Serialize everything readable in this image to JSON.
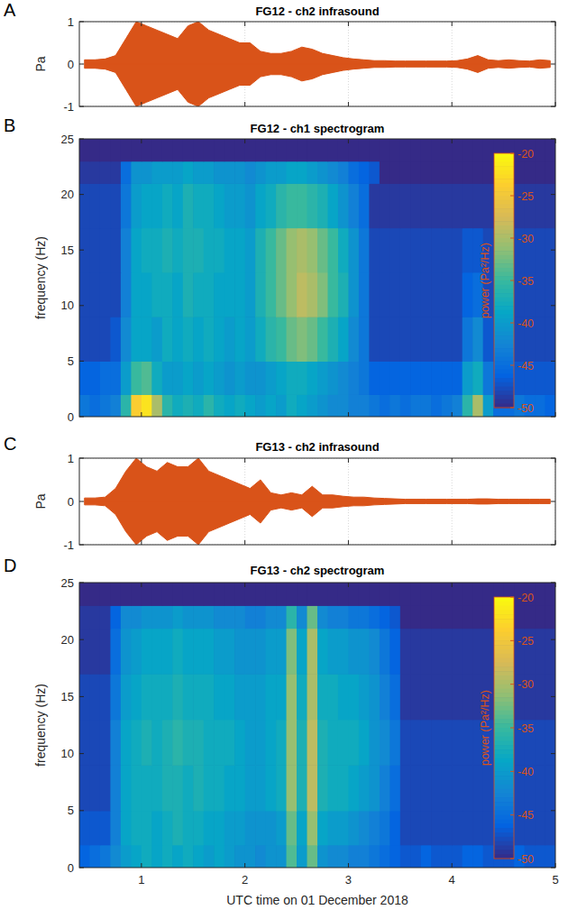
{
  "chart_data": [
    {
      "type": "envelope",
      "panel": "A",
      "title": "FG12 - ch2 infrasound",
      "y_label": "Pa",
      "color": "#d95319",
      "grid": true,
      "tick_labels": "y",
      "xlim": [
        0.4,
        5
      ],
      "xticks": [
        1,
        2,
        3,
        4,
        5
      ],
      "ylim": [
        -1,
        1
      ],
      "yticks": [
        -1,
        0,
        1
      ],
      "x": [
        0.45,
        0.55,
        0.65,
        0.75,
        0.85,
        0.95,
        1.05,
        1.15,
        1.25,
        1.35,
        1.45,
        1.55,
        1.65,
        1.75,
        1.85,
        1.95,
        2.05,
        2.15,
        2.25,
        2.35,
        2.45,
        2.55,
        2.65,
        2.75,
        2.85,
        2.95,
        3.05,
        3.15,
        3.25,
        3.35,
        3.45,
        3.55,
        3.65,
        3.75,
        3.85,
        3.95,
        4.05,
        4.15,
        4.25,
        4.35,
        4.45,
        4.55,
        4.65,
        4.75,
        4.85,
        4.95
      ],
      "values": [
        0.1,
        0.1,
        0.12,
        0.2,
        0.6,
        1.0,
        0.9,
        0.8,
        0.7,
        0.6,
        0.9,
        1.0,
        0.8,
        0.7,
        0.6,
        0.5,
        0.5,
        0.3,
        0.25,
        0.25,
        0.3,
        0.4,
        0.35,
        0.25,
        0.2,
        0.15,
        0.12,
        0.1,
        0.08,
        0.08,
        0.07,
        0.07,
        0.07,
        0.07,
        0.07,
        0.07,
        0.08,
        0.12,
        0.2,
        0.1,
        0.08,
        0.1,
        0.08,
        0.07,
        0.1,
        0.08
      ]
    },
    {
      "type": "heatmap",
      "panel": "B",
      "title": "FG12 - ch1 spectrogram",
      "y_label": "frequency (Hz)",
      "grid": false,
      "tick_labels": "y",
      "xlim": [
        0.4,
        5
      ],
      "xticks": [
        1,
        2,
        3,
        4,
        5
      ],
      "ylim": [
        0,
        25
      ],
      "yticks": [
        0,
        5,
        10,
        15,
        20,
        25
      ],
      "x_edges": [
        0.4,
        0.5,
        0.6,
        0.7,
        0.8,
        0.9,
        1.0,
        1.1,
        1.2,
        1.3,
        1.4,
        1.5,
        1.6,
        1.7,
        1.8,
        1.9,
        2.0,
        2.1,
        2.2,
        2.3,
        2.4,
        2.5,
        2.6,
        2.7,
        2.8,
        2.9,
        3.0,
        3.1,
        3.2,
        3.3,
        3.4,
        3.5,
        3.6,
        3.7,
        3.8,
        3.9,
        4.0,
        4.1,
        4.2,
        4.3,
        4.4,
        4.5,
        4.6,
        4.7,
        4.8,
        4.9,
        5.0
      ],
      "y_edges": [
        0,
        2,
        5,
        9,
        13,
        17,
        21,
        23,
        25
      ],
      "cells": [
        [
          -44,
          -45,
          -44,
          -43,
          -36,
          -24,
          -22,
          -30,
          -36,
          -38,
          -37,
          -38,
          -36,
          -38,
          -39,
          -38,
          -39,
          -40,
          -39,
          -40,
          -38,
          -39,
          -40,
          -41,
          -42,
          -42,
          -43,
          -43,
          -44,
          -45,
          -44,
          -45,
          -44,
          -44,
          -45,
          -44,
          -43,
          -36,
          -30,
          -40,
          -45,
          -45,
          -44,
          -45,
          -45,
          -46
        ],
        [
          -46,
          -46,
          -45,
          -45,
          -40,
          -35,
          -34,
          -38,
          -40,
          -40,
          -39,
          -40,
          -39,
          -40,
          -41,
          -40,
          -41,
          -41,
          -40,
          -39,
          -38,
          -38,
          -39,
          -40,
          -41,
          -42,
          -43,
          -44,
          -46,
          -46,
          -46,
          -46,
          -46,
          -46,
          -46,
          -46,
          -46,
          -40,
          -38,
          -44,
          -47,
          -47,
          -47,
          -47,
          -47,
          -47
        ],
        [
          -48,
          -48,
          -48,
          -47,
          -42,
          -39,
          -39,
          -40,
          -38,
          -39,
          -38,
          -39,
          -38,
          -39,
          -40,
          -39,
          -40,
          -38,
          -36,
          -35,
          -33,
          -32,
          -33,
          -35,
          -37,
          -39,
          -42,
          -44,
          -48,
          -48,
          -48,
          -48,
          -48,
          -48,
          -48,
          -48,
          -48,
          -44,
          -42,
          -47,
          -48,
          -48,
          -48,
          -48,
          -48,
          -48
        ],
        [
          -48,
          -48,
          -48,
          -48,
          -43,
          -39,
          -39,
          -38,
          -38,
          -39,
          -37,
          -38,
          -38,
          -39,
          -39,
          -39,
          -40,
          -37,
          -35,
          -33,
          -31,
          -29,
          -30,
          -32,
          -35,
          -37,
          -41,
          -44,
          -48,
          -48,
          -48,
          -48,
          -48,
          -48,
          -48,
          -48,
          -48,
          -46,
          -45,
          -48,
          -48,
          -48,
          -48,
          -48,
          -48,
          -48
        ],
        [
          -48,
          -48,
          -48,
          -48,
          -43,
          -39,
          -38,
          -38,
          -37,
          -38,
          -37,
          -37,
          -38,
          -38,
          -39,
          -39,
          -40,
          -37,
          -35,
          -33,
          -31,
          -30,
          -31,
          -33,
          -35,
          -38,
          -41,
          -44,
          -48,
          -48,
          -48,
          -48,
          -48,
          -48,
          -48,
          -48,
          -48,
          -47,
          -47,
          -48,
          -48,
          -48,
          -48,
          -48,
          -48,
          -48
        ],
        [
          -48,
          -48,
          -48,
          -48,
          -44,
          -40,
          -39,
          -39,
          -38,
          -39,
          -37,
          -38,
          -38,
          -39,
          -40,
          -40,
          -41,
          -39,
          -38,
          -36,
          -35,
          -35,
          -36,
          -37,
          -39,
          -41,
          -43,
          -45,
          -49,
          -49,
          -49,
          -49,
          -49,
          -49,
          -49,
          -49,
          -49,
          -49,
          -49,
          -49,
          -49,
          -49,
          -49,
          -49,
          -49,
          -49
        ],
        [
          -49,
          -49,
          -49,
          -49,
          -45,
          -41,
          -41,
          -40,
          -40,
          -40,
          -39,
          -40,
          -40,
          -41,
          -41,
          -41,
          -42,
          -41,
          -40,
          -40,
          -39,
          -39,
          -40,
          -41,
          -42,
          -43,
          -45,
          -46,
          -47,
          -50,
          -50,
          -50,
          -50,
          -50,
          -50,
          -50,
          -50,
          -50,
          -50,
          -50,
          -50,
          -50,
          -50,
          -50,
          -50,
          -50
        ],
        [
          -50,
          -50,
          -50,
          -50,
          -50,
          -50,
          -50,
          -50,
          -50,
          -50,
          -50,
          -50,
          -50,
          -50,
          -50,
          -50,
          -50,
          -50,
          -50,
          -50,
          -50,
          -50,
          -50,
          -50,
          -50,
          -50,
          -50,
          -50,
          -50,
          -50,
          -50,
          -50,
          -50,
          -50,
          -50,
          -50,
          -50,
          -50,
          -50,
          -50,
          -50,
          -50,
          -50,
          -50,
          -50,
          -50
        ]
      ],
      "colorbar": {
        "label": "power (Pa²/Hz)",
        "range": [
          -50,
          -20
        ],
        "ticks": [
          -20,
          -25,
          -30,
          -35,
          -40,
          -45,
          -50
        ]
      }
    },
    {
      "type": "envelope",
      "panel": "C",
      "title": "FG13 - ch2 infrasound",
      "y_label": "Pa",
      "color": "#d95319",
      "grid": true,
      "tick_labels": "y",
      "xlim": [
        0.4,
        5
      ],
      "xticks": [
        1,
        2,
        3,
        4,
        5
      ],
      "ylim": [
        -1,
        1
      ],
      "yticks": [
        -1,
        0,
        1
      ],
      "x": [
        0.45,
        0.55,
        0.65,
        0.75,
        0.85,
        0.95,
        1.05,
        1.15,
        1.25,
        1.35,
        1.45,
        1.55,
        1.65,
        1.75,
        1.85,
        1.95,
        2.05,
        2.15,
        2.25,
        2.35,
        2.45,
        2.55,
        2.65,
        2.75,
        2.85,
        2.95,
        3.05,
        3.15,
        3.25,
        3.35,
        3.45,
        3.55,
        3.65,
        3.75,
        3.85,
        3.95,
        4.05,
        4.15,
        4.25,
        4.35,
        4.45,
        4.55,
        4.65,
        4.75,
        4.85,
        4.95
      ],
      "values": [
        0.08,
        0.08,
        0.1,
        0.3,
        0.7,
        1.0,
        0.8,
        0.7,
        0.9,
        0.8,
        0.8,
        1.0,
        0.7,
        0.6,
        0.5,
        0.4,
        0.3,
        0.5,
        0.2,
        0.15,
        0.2,
        0.15,
        0.35,
        0.15,
        0.15,
        0.12,
        0.1,
        0.1,
        0.08,
        0.07,
        0.06,
        0.05,
        0.05,
        0.05,
        0.05,
        0.05,
        0.05,
        0.05,
        0.06,
        0.06,
        0.05,
        0.05,
        0.05,
        0.05,
        0.05,
        0.05
      ]
    },
    {
      "type": "heatmap",
      "panel": "D",
      "title": "FG13 - ch2 spectrogram",
      "y_label": "frequency (Hz)",
      "x_label": "UTC time on 01 December 2018",
      "grid": false,
      "tick_labels": true,
      "xlim": [
        0.4,
        5
      ],
      "xticks": [
        1,
        2,
        3,
        4,
        5
      ],
      "ylim": [
        0,
        25
      ],
      "yticks": [
        0,
        5,
        10,
        15,
        20,
        25
      ],
      "x_edges": [
        0.4,
        0.5,
        0.6,
        0.7,
        0.8,
        0.9,
        1.0,
        1.1,
        1.2,
        1.3,
        1.4,
        1.5,
        1.6,
        1.7,
        1.8,
        1.9,
        2.0,
        2.1,
        2.2,
        2.3,
        2.4,
        2.5,
        2.6,
        2.7,
        2.8,
        2.9,
        3.0,
        3.1,
        3.2,
        3.3,
        3.4,
        3.5,
        3.6,
        3.7,
        3.8,
        3.9,
        4.0,
        4.1,
        4.2,
        4.3,
        4.4,
        4.5,
        4.6,
        4.7,
        4.8,
        4.9,
        5.0
      ],
      "y_edges": [
        0,
        2,
        5,
        9,
        13,
        17,
        21,
        23,
        25
      ],
      "cells": [
        [
          -46,
          -45,
          -44,
          -42,
          -40,
          -39,
          -38,
          -39,
          -38,
          -39,
          -38,
          -39,
          -40,
          -39,
          -40,
          -41,
          -41,
          -42,
          -41,
          -41,
          -34,
          -40,
          -33,
          -41,
          -42,
          -42,
          -43,
          -43,
          -44,
          -45,
          -46,
          -47,
          -47,
          -46,
          -47,
          -47,
          -47,
          -46,
          -46,
          -47,
          -47,
          -47,
          -46,
          -47,
          -47,
          -47
        ],
        [
          -47,
          -47,
          -47,
          -43,
          -39,
          -38,
          -38,
          -39,
          -38,
          -37,
          -38,
          -38,
          -39,
          -39,
          -40,
          -40,
          -41,
          -41,
          -41,
          -40,
          -33,
          -39,
          -31,
          -39,
          -40,
          -40,
          -41,
          -42,
          -43,
          -44,
          -46,
          -48,
          -48,
          -48,
          -48,
          -48,
          -48,
          -48,
          -48,
          -48,
          -48,
          -48,
          -48,
          -48,
          -48,
          -48
        ],
        [
          -48,
          -48,
          -48,
          -43,
          -39,
          -38,
          -38,
          -38,
          -37,
          -37,
          -38,
          -37,
          -38,
          -38,
          -39,
          -39,
          -40,
          -40,
          -39,
          -38,
          -31,
          -37,
          -29,
          -37,
          -38,
          -38,
          -39,
          -40,
          -41,
          -43,
          -45,
          -48,
          -48,
          -48,
          -48,
          -48,
          -48,
          -48,
          -48,
          -48,
          -48,
          -48,
          -48,
          -48,
          -48,
          -48
        ],
        [
          -48,
          -48,
          -48,
          -43,
          -39,
          -38,
          -37,
          -38,
          -37,
          -36,
          -37,
          -37,
          -38,
          -38,
          -38,
          -39,
          -40,
          -40,
          -39,
          -38,
          -31,
          -37,
          -29,
          -37,
          -38,
          -38,
          -38,
          -39,
          -41,
          -42,
          -44,
          -48,
          -48,
          -48,
          -48,
          -48,
          -48,
          -48,
          -48,
          -48,
          -48,
          -48,
          -48,
          -48,
          -48,
          -48
        ],
        [
          -48,
          -48,
          -48,
          -44,
          -40,
          -39,
          -38,
          -38,
          -38,
          -37,
          -38,
          -38,
          -38,
          -39,
          -39,
          -40,
          -40,
          -40,
          -39,
          -39,
          -31,
          -38,
          -30,
          -38,
          -38,
          -39,
          -39,
          -40,
          -41,
          -43,
          -45,
          -49,
          -49,
          -49,
          -49,
          -49,
          -49,
          -49,
          -49,
          -49,
          -49,
          -49,
          -49,
          -49,
          -49,
          -49
        ],
        [
          -49,
          -49,
          -49,
          -45,
          -41,
          -40,
          -39,
          -39,
          -39,
          -38,
          -39,
          -39,
          -39,
          -40,
          -40,
          -41,
          -41,
          -41,
          -40,
          -40,
          -32,
          -39,
          -30,
          -39,
          -40,
          -40,
          -41,
          -41,
          -42,
          -44,
          -46,
          -49,
          -49,
          -49,
          -49,
          -49,
          -49,
          -49,
          -49,
          -49,
          -49,
          -49,
          -49,
          -49,
          -49,
          -49
        ],
        [
          -49,
          -49,
          -49,
          -46,
          -42,
          -42,
          -41,
          -41,
          -41,
          -40,
          -41,
          -41,
          -41,
          -42,
          -42,
          -42,
          -43,
          -43,
          -42,
          -42,
          -36,
          -42,
          -33,
          -42,
          -43,
          -43,
          -44,
          -44,
          -45,
          -46,
          -47,
          -50,
          -50,
          -50,
          -50,
          -50,
          -50,
          -50,
          -50,
          -50,
          -50,
          -50,
          -50,
          -50,
          -50,
          -50
        ],
        [
          -50,
          -50,
          -50,
          -50,
          -50,
          -50,
          -50,
          -50,
          -50,
          -50,
          -50,
          -50,
          -50,
          -50,
          -50,
          -50,
          -50,
          -50,
          -50,
          -50,
          -50,
          -50,
          -50,
          -50,
          -50,
          -50,
          -50,
          -50,
          -50,
          -50,
          -50,
          -50,
          -50,
          -50,
          -50,
          -50,
          -50,
          -50,
          -50,
          -50,
          -50,
          -50,
          -50,
          -50,
          -50,
          -50
        ]
      ],
      "colorbar": {
        "label": "power (Pa²/Hz)",
        "range": [
          -50,
          -20
        ],
        "ticks": [
          -20,
          -25,
          -30,
          -35,
          -40,
          -45,
          -50
        ]
      }
    }
  ]
}
